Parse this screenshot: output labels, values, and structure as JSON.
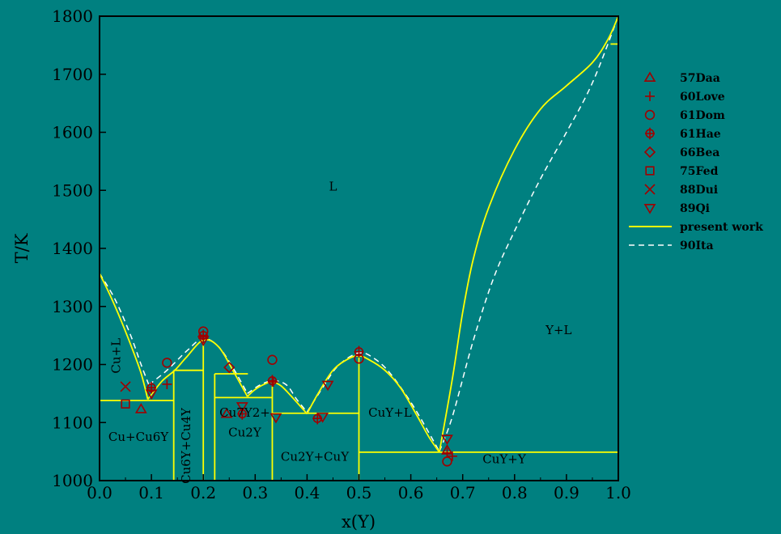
{
  "colors": {
    "background": "#008080",
    "axis": "#000000",
    "present_work": "#ffff00",
    "lit_90Ita": "#ffffff",
    "experimental": "#a00000",
    "text": "#000000"
  },
  "chart_data": {
    "type": "line",
    "title": "",
    "xlabel": "x(Y)",
    "ylabel": "T/K",
    "xlim": [
      0.0,
      1.0
    ],
    "ylim": [
      1000,
      1800
    ],
    "x_ticks": [
      "0.0",
      "0.1",
      "0.2",
      "0.3",
      "0.4",
      "0.5",
      "0.6",
      "0.7",
      "0.8",
      "0.9",
      "1.0"
    ],
    "y_ticks": [
      "1000",
      "1100",
      "1200",
      "1300",
      "1400",
      "1500",
      "1600",
      "1700",
      "1800"
    ],
    "grid": false,
    "legend_position": "right",
    "legend": [
      {
        "label": "57Daa",
        "marker": "triangle-up"
      },
      {
        "label": "60Love",
        "marker": "plus"
      },
      {
        "label": "61Dom",
        "marker": "circle"
      },
      {
        "label": "61Hae",
        "marker": "circle-plus"
      },
      {
        "label": "66Bea",
        "marker": "diamond"
      },
      {
        "label": "75Fed",
        "marker": "square"
      },
      {
        "label": "88Dui",
        "marker": "cross"
      },
      {
        "label": "89Qi",
        "marker": "triangle-down"
      },
      {
        "label": "present work",
        "marker": "solid-line"
      },
      {
        "label": "90Ita",
        "marker": "dashed-line"
      }
    ],
    "region_labels": [
      {
        "text": "L",
        "x": 0.45,
        "y": 1500
      },
      {
        "text": "Y+L",
        "x": 0.885,
        "y": 1252
      },
      {
        "text": "Cu+L",
        "x": 0.04,
        "y": 1215
      },
      {
        "text": "Cu+Cu6Y",
        "x": 0.075,
        "y": 1068
      },
      {
        "text": "Cu6Y+Cu4Y",
        "x": 0.175,
        "y": 1060
      },
      {
        "text": "Cu7Y2+",
        "x": 0.28,
        "y": 1110
      },
      {
        "text": "Cu2Y",
        "x": 0.28,
        "y": 1076
      },
      {
        "text": "Cu2Y+CuY",
        "x": 0.415,
        "y": 1034
      },
      {
        "text": "CuY+L",
        "x": 0.56,
        "y": 1110
      },
      {
        "text": "CuY+Y",
        "x": 0.78,
        "y": 1030
      }
    ],
    "series": [
      {
        "name": "present work",
        "segments": [
          {
            "x": [
              0.0,
              0.02,
              0.04,
              0.06,
              0.08,
              0.093
            ],
            "y": [
              1357,
              1320,
              1279,
              1234,
              1185,
              1140
            ]
          },
          {
            "x": [
              0.093,
              0.12,
              0.145,
              0.167,
              0.2,
              0.23,
              0.26,
              0.285
            ],
            "y": [
              1140,
              1171,
              1190,
              1212,
              1242,
              1230,
              1185,
              1145
            ]
          },
          {
            "x": [
              0.285,
              0.3,
              0.32,
              0.333,
              0.35,
              0.37,
              0.4
            ],
            "y": [
              1145,
              1157,
              1167,
              1170,
              1163,
              1145,
              1115
            ]
          },
          {
            "x": [
              0.4,
              0.42,
              0.45,
              0.48,
              0.5,
              0.52,
              0.55,
              0.58,
              0.61,
              0.635,
              0.655
            ],
            "y": [
              1115,
              1148,
              1190,
              1210,
              1215,
              1208,
              1190,
              1160,
              1115,
              1075,
              1049
            ]
          },
          {
            "x": [
              0.655,
              0.68,
              0.7,
              0.72,
              0.75,
              0.8,
              0.85,
              0.9,
              0.95,
              0.98,
              1.0
            ],
            "y": [
              1049,
              1175,
              1290,
              1380,
              1470,
              1570,
              1640,
              1680,
              1720,
              1760,
              1800
            ]
          }
        ],
        "horizontal_lines": [
          {
            "x": [
              0.0,
              0.143
            ],
            "y": 1138
          },
          {
            "x": [
              0.143,
              0.2
            ],
            "y": 1190
          },
          {
            "x": [
              0.222,
              0.286
            ],
            "y": 1184
          },
          {
            "x": [
              0.222,
              0.333
            ],
            "y": 1143
          },
          {
            "x": [
              0.333,
              0.5
            ],
            "y": 1116
          },
          {
            "x": [
              0.5,
              1.0
            ],
            "y": 1049
          },
          {
            "x": [
              0.985,
              1.0
            ],
            "y": 1752
          }
        ],
        "vertical_lines": [
          {
            "x": 0.143,
            "y": [
              1000,
              1190
            ]
          },
          {
            "x": 0.2,
            "y": [
              1000,
              1242
            ]
          },
          {
            "x": 0.222,
            "y": [
              1000,
              1184
            ]
          },
          {
            "x": 0.333,
            "y": [
              1000,
              1170
            ]
          },
          {
            "x": 0.5,
            "y": [
              1000,
              1215
            ]
          }
        ]
      },
      {
        "name": "90Ita",
        "segments": [
          {
            "x": [
              0.0,
              0.03,
              0.06,
              0.08,
              0.095
            ],
            "y": [
              1357,
              1312,
              1250,
              1200,
              1165
            ]
          },
          {
            "x": [
              0.095,
              0.13,
              0.17,
              0.2,
              0.23,
              0.26,
              0.285
            ],
            "y": [
              1165,
              1190,
              1225,
              1245,
              1230,
              1190,
              1150
            ]
          },
          {
            "x": [
              0.285,
              0.31,
              0.335,
              0.36,
              0.38,
              0.4
            ],
            "y": [
              1150,
              1165,
              1172,
              1165,
              1140,
              1118
            ]
          },
          {
            "x": [
              0.4,
              0.43,
              0.46,
              0.5,
              0.53,
              0.56,
              0.6,
              0.63,
              0.655
            ],
            "y": [
              1118,
              1160,
              1198,
              1220,
              1210,
              1185,
              1135,
              1090,
              1050
            ]
          },
          {
            "x": [
              0.655,
              0.68,
              0.72,
              0.76,
              0.8,
              0.85,
              0.9,
              0.95,
              1.0
            ],
            "y": [
              1050,
              1110,
              1240,
              1350,
              1430,
              1520,
              1600,
              1685,
              1800
            ]
          }
        ]
      },
      {
        "name": "57Daa",
        "marker": "triangle-up",
        "points": [
          [
            0.08,
            1123
          ],
          [
            0.245,
            1115
          ],
          [
            0.67,
            1052
          ]
        ]
      },
      {
        "name": "60Love",
        "marker": "plus",
        "points": [
          [
            0.13,
            1166
          ],
          [
            0.2,
            1245
          ],
          [
            0.335,
            1170
          ],
          [
            0.67,
            1048
          ],
          [
            0.68,
            1042
          ]
        ]
      },
      {
        "name": "61Dom",
        "marker": "circle",
        "points": [
          [
            0.13,
            1203
          ],
          [
            0.2,
            1257
          ],
          [
            0.333,
            1208
          ],
          [
            0.5,
            1210
          ],
          [
            0.67,
            1033
          ]
        ]
      },
      {
        "name": "61Hae",
        "marker": "circle-plus",
        "points": [
          [
            0.1,
            1160
          ],
          [
            0.2,
            1250
          ],
          [
            0.275,
            1115
          ],
          [
            0.333,
            1172
          ],
          [
            0.42,
            1107
          ],
          [
            0.5,
            1222
          ]
        ]
      },
      {
        "name": "66Bea",
        "marker": "diamond",
        "points": [
          [
            0.25,
            1195
          ]
        ]
      },
      {
        "name": "75Fed",
        "marker": "square",
        "points": [
          [
            0.05,
            1132
          ]
        ]
      },
      {
        "name": "88Dui",
        "marker": "cross",
        "points": [
          [
            0.05,
            1162
          ]
        ]
      },
      {
        "name": "89Qi",
        "marker": "triangle-down",
        "points": [
          [
            0.1,
            1150
          ],
          [
            0.275,
            1128
          ],
          [
            0.34,
            1109
          ],
          [
            0.43,
            1110
          ],
          [
            0.44,
            1165
          ],
          [
            0.67,
            1072
          ],
          [
            0.2,
            1242
          ]
        ]
      }
    ]
  }
}
